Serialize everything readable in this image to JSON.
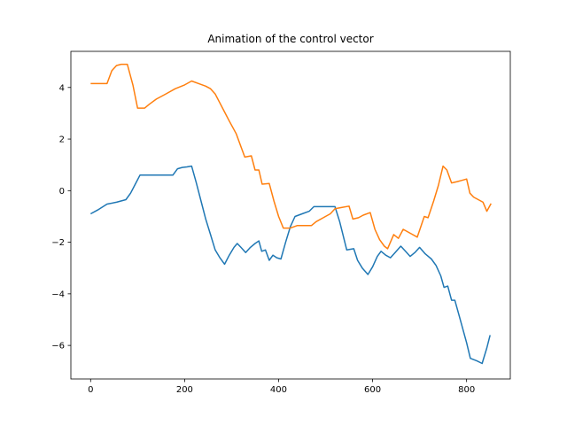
{
  "chart_data": {
    "type": "line",
    "title": "Animation of the control vector",
    "xlabel": "",
    "ylabel": "",
    "xlim": [
      -42,
      893
    ],
    "ylim": [
      -7.3,
      5.4
    ],
    "xticks": [
      0,
      200,
      400,
      600,
      800
    ],
    "yticks": [
      -6,
      -4,
      -2,
      0,
      2,
      4
    ],
    "grid": false,
    "legend": "none",
    "series": [
      {
        "color": "#1f77b4",
        "points": [
          [
            0,
            -0.9
          ],
          [
            15,
            -0.75
          ],
          [
            35,
            -0.52
          ],
          [
            55,
            -0.45
          ],
          [
            75,
            -0.35
          ],
          [
            85,
            -0.1
          ],
          [
            95,
            0.25
          ],
          [
            105,
            0.6
          ],
          [
            120,
            0.6
          ],
          [
            140,
            0.6
          ],
          [
            160,
            0.6
          ],
          [
            175,
            0.6
          ],
          [
            185,
            0.85
          ],
          [
            195,
            0.9
          ],
          [
            205,
            0.92
          ],
          [
            215,
            0.95
          ],
          [
            225,
            0.3
          ],
          [
            235,
            -0.4
          ],
          [
            245,
            -1.1
          ],
          [
            255,
            -1.7
          ],
          [
            265,
            -2.3
          ],
          [
            275,
            -2.6
          ],
          [
            285,
            -2.85
          ],
          [
            295,
            -2.5
          ],
          [
            305,
            -2.2
          ],
          [
            312,
            -2.05
          ],
          [
            320,
            -2.2
          ],
          [
            330,
            -2.4
          ],
          [
            340,
            -2.2
          ],
          [
            350,
            -2.05
          ],
          [
            358,
            -1.95
          ],
          [
            364,
            -2.35
          ],
          [
            372,
            -2.3
          ],
          [
            380,
            -2.7
          ],
          [
            388,
            -2.5
          ],
          [
            396,
            -2.6
          ],
          [
            405,
            -2.65
          ],
          [
            415,
            -2.0
          ],
          [
            425,
            -1.4
          ],
          [
            435,
            -1.0
          ],
          [
            450,
            -0.9
          ],
          [
            465,
            -0.8
          ],
          [
            475,
            -0.62
          ],
          [
            495,
            -0.62
          ],
          [
            520,
            -0.62
          ],
          [
            530,
            -1.2
          ],
          [
            545,
            -2.3
          ],
          [
            560,
            -2.25
          ],
          [
            568,
            -2.7
          ],
          [
            578,
            -3.0
          ],
          [
            590,
            -3.25
          ],
          [
            600,
            -2.95
          ],
          [
            610,
            -2.55
          ],
          [
            618,
            -2.35
          ],
          [
            628,
            -2.5
          ],
          [
            638,
            -2.6
          ],
          [
            648,
            -2.4
          ],
          [
            660,
            -2.15
          ],
          [
            670,
            -2.35
          ],
          [
            680,
            -2.55
          ],
          [
            690,
            -2.4
          ],
          [
            700,
            -2.2
          ],
          [
            712,
            -2.45
          ],
          [
            725,
            -2.65
          ],
          [
            735,
            -2.9
          ],
          [
            745,
            -3.3
          ],
          [
            752,
            -3.75
          ],
          [
            760,
            -3.7
          ],
          [
            768,
            -4.25
          ],
          [
            775,
            -4.25
          ],
          [
            785,
            -4.9
          ],
          [
            800,
            -5.9
          ],
          [
            808,
            -6.5
          ],
          [
            822,
            -6.6
          ],
          [
            833,
            -6.7
          ],
          [
            843,
            -6.1
          ],
          [
            850,
            -5.6
          ]
        ]
      },
      {
        "color": "#ff7f0e",
        "points": [
          [
            0,
            4.15
          ],
          [
            20,
            4.15
          ],
          [
            35,
            4.15
          ],
          [
            45,
            4.65
          ],
          [
            55,
            4.85
          ],
          [
            65,
            4.9
          ],
          [
            78,
            4.9
          ],
          [
            90,
            4.1
          ],
          [
            100,
            3.2
          ],
          [
            115,
            3.2
          ],
          [
            125,
            3.35
          ],
          [
            140,
            3.55
          ],
          [
            160,
            3.75
          ],
          [
            180,
            3.95
          ],
          [
            200,
            4.1
          ],
          [
            215,
            4.25
          ],
          [
            230,
            4.15
          ],
          [
            245,
            4.05
          ],
          [
            255,
            3.95
          ],
          [
            265,
            3.75
          ],
          [
            275,
            3.4
          ],
          [
            285,
            3.05
          ],
          [
            295,
            2.7
          ],
          [
            310,
            2.2
          ],
          [
            320,
            1.7
          ],
          [
            328,
            1.3
          ],
          [
            342,
            1.35
          ],
          [
            350,
            0.8
          ],
          [
            358,
            0.8
          ],
          [
            365,
            0.25
          ],
          [
            380,
            0.28
          ],
          [
            390,
            -0.4
          ],
          [
            400,
            -1.0
          ],
          [
            410,
            -1.45
          ],
          [
            425,
            -1.45
          ],
          [
            440,
            -1.35
          ],
          [
            455,
            -1.35
          ],
          [
            470,
            -1.35
          ],
          [
            480,
            -1.2
          ],
          [
            495,
            -1.05
          ],
          [
            510,
            -0.9
          ],
          [
            520,
            -0.7
          ],
          [
            535,
            -0.65
          ],
          [
            550,
            -0.6
          ],
          [
            558,
            -1.1
          ],
          [
            570,
            -1.05
          ],
          [
            580,
            -0.95
          ],
          [
            595,
            -0.85
          ],
          [
            605,
            -1.5
          ],
          [
            615,
            -1.9
          ],
          [
            625,
            -2.15
          ],
          [
            632,
            -2.25
          ],
          [
            645,
            -1.7
          ],
          [
            655,
            -1.85
          ],
          [
            665,
            -1.5
          ],
          [
            680,
            -1.65
          ],
          [
            695,
            -1.8
          ],
          [
            710,
            -1.0
          ],
          [
            718,
            -1.05
          ],
          [
            730,
            -0.4
          ],
          [
            740,
            0.2
          ],
          [
            750,
            0.95
          ],
          [
            758,
            0.8
          ],
          [
            768,
            0.3
          ],
          [
            780,
            0.35
          ],
          [
            790,
            0.4
          ],
          [
            800,
            0.45
          ],
          [
            807,
            -0.1
          ],
          [
            815,
            -0.25
          ],
          [
            825,
            -0.35
          ],
          [
            835,
            -0.45
          ],
          [
            843,
            -0.8
          ],
          [
            852,
            -0.5
          ]
        ]
      }
    ]
  }
}
